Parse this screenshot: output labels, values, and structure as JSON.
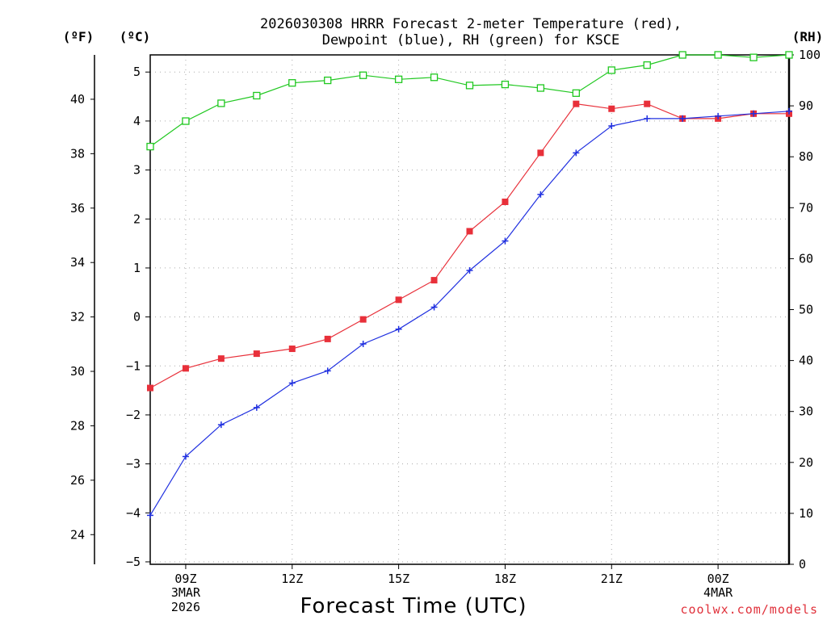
{
  "chart_data": {
    "type": "line",
    "title": "2026030308 HRRR Forecast 2-meter Temperature (red),",
    "subtitle": "Dewpoint (blue), RH (green) for KSCE",
    "xlabel": "Forecast Time (UTC)",
    "credit": "coolwx.com/models",
    "units": {
      "fahrenheit": "(ºF)",
      "celsius": "(ºC)",
      "rh": "(RH)"
    },
    "celsius_axis": {
      "ylim": [
        -5.05,
        5.35
      ],
      "ticks": [
        -5,
        -4,
        -3,
        -2,
        -1,
        0,
        1,
        2,
        3,
        4,
        5
      ],
      "tick_labels": [
        "−5",
        "−4",
        "−3",
        "−2",
        "−1",
        "0",
        "1",
        "2",
        "3",
        "4",
        "5"
      ]
    },
    "fahrenheit_axis": {
      "ticks": [
        24,
        26,
        28,
        30,
        32,
        34,
        36,
        38,
        40
      ],
      "tick_labels": [
        "24",
        "26",
        "28",
        "30",
        "32",
        "34",
        "36",
        "38",
        "40"
      ]
    },
    "rh_axis": {
      "ylim": [
        0,
        100
      ],
      "ticks": [
        0,
        10,
        20,
        30,
        40,
        50,
        60,
        70,
        80,
        90,
        100
      ],
      "tick_labels": [
        "0",
        "10",
        "20",
        "30",
        "40",
        "50",
        "60",
        "70",
        "80",
        "90",
        "100"
      ]
    },
    "x_axis": {
      "xlim": [
        8,
        26
      ],
      "ticks": [
        {
          "hour": 9,
          "label": "09Z",
          "date": "3MAR",
          "year": "2026"
        },
        {
          "hour": 12,
          "label": "12Z"
        },
        {
          "hour": 15,
          "label": "15Z"
        },
        {
          "hour": 18,
          "label": "18Z"
        },
        {
          "hour": 21,
          "label": "21Z"
        },
        {
          "hour": 24,
          "label": "00Z",
          "date": "4MAR"
        }
      ]
    },
    "x": [
      8,
      9,
      10,
      11,
      12,
      13,
      14,
      15,
      16,
      17,
      18,
      19,
      20,
      21,
      22,
      23,
      24,
      25,
      26
    ],
    "series": [
      {
        "name": "Temperature",
        "axis": "celsius",
        "color": "#e8303a",
        "marker": "filled-square",
        "values": [
          -1.45,
          -1.05,
          -0.85,
          -0.75,
          -0.65,
          -0.45,
          -0.05,
          0.35,
          0.75,
          1.75,
          2.35,
          3.35,
          4.35,
          4.25,
          4.35,
          4.05,
          4.05,
          4.15,
          4.15
        ]
      },
      {
        "name": "Dewpoint",
        "axis": "celsius",
        "color": "#2030e0",
        "marker": "plus",
        "values": [
          -4.05,
          -2.85,
          -2.2,
          -1.85,
          -1.35,
          -1.1,
          -0.55,
          -0.25,
          0.2,
          0.95,
          1.55,
          2.5,
          3.35,
          3.9,
          4.05,
          4.05,
          4.1,
          4.15,
          4.2
        ]
      },
      {
        "name": "RH",
        "axis": "rh",
        "color": "#20c820",
        "marker": "open-square",
        "values": [
          82,
          87,
          90.5,
          92,
          94.5,
          95,
          96,
          95.2,
          95.6,
          94,
          94.2,
          93.5,
          92.5,
          97,
          98,
          100,
          100,
          99.5,
          100
        ]
      }
    ]
  }
}
